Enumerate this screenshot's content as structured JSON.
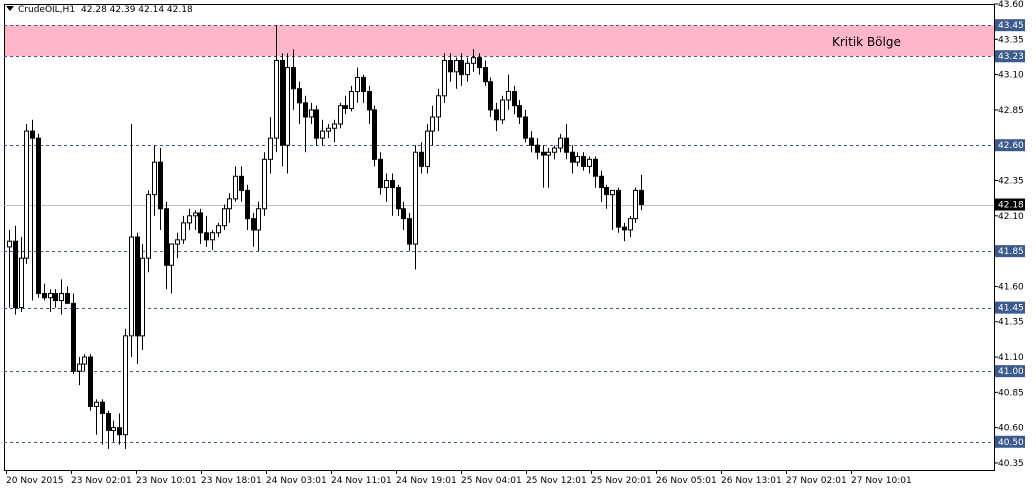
{
  "header": {
    "symbol": "CrudeOIL,H1",
    "ohlc": "42.28 42.39 42.14 42.18"
  },
  "zone": {
    "label": "Kritik Bölge",
    "from": 43.23,
    "to": 43.45,
    "color": "#ffb6c8"
  },
  "colors": {
    "bg": "#ffffff",
    "grid": "#000000",
    "level_line": "#3c5a8c",
    "current_line": "#c0c0c0",
    "bull": "#ffffff",
    "bear": "#000000"
  },
  "chart_data": {
    "type": "candlestick",
    "symbol": "CrudeOIL",
    "timeframe": "H1",
    "ylim": [
      40.3,
      43.6
    ],
    "y_ticks": [
      "43.60",
      "43.35",
      "43.10",
      "42.85",
      "42.35",
      "42.10",
      "41.60",
      "41.35",
      "41.10",
      "40.85",
      "40.60",
      "40.35"
    ],
    "level_lines": [
      "43.45",
      "43.23",
      "42.60",
      "41.85",
      "41.45",
      "41.00",
      "40.50"
    ],
    "current_price": "42.18",
    "x_ticks": [
      "20 Nov 2015",
      "23 Nov 02:01",
      "23 Nov 10:01",
      "23 Nov 18:01",
      "24 Nov 03:01",
      "24 Nov 11:01",
      "24 Nov 19:01",
      "25 Nov 04:01",
      "25 Nov 12:01",
      "25 Nov 20:01",
      "26 Nov 05:01",
      "26 Nov 13:01",
      "27 Nov 02:01",
      "27 Nov 10:01"
    ],
    "candles": [
      [
        41.88,
        42.0,
        41.45,
        41.92
      ],
      [
        41.92,
        42.03,
        41.4,
        41.45
      ],
      [
        41.45,
        41.95,
        41.42,
        41.8
      ],
      [
        41.8,
        42.75,
        41.76,
        42.7
      ],
      [
        42.7,
        42.78,
        41.5,
        42.65
      ],
      [
        42.65,
        42.68,
        41.52,
        41.55
      ],
      [
        41.55,
        41.62,
        41.5,
        41.52
      ],
      [
        41.52,
        41.58,
        41.42,
        41.55
      ],
      [
        41.55,
        41.58,
        41.45,
        41.5
      ],
      [
        41.5,
        41.65,
        41.4,
        41.55
      ],
      [
        41.55,
        41.6,
        41.48,
        41.48
      ],
      [
        41.48,
        41.55,
        40.98,
        41.0
      ],
      [
        41.0,
        41.1,
        40.9,
        41.05
      ],
      [
        41.05,
        41.12,
        41.0,
        41.1
      ],
      [
        41.1,
        41.12,
        40.72,
        40.75
      ],
      [
        40.75,
        40.8,
        40.55,
        40.78
      ],
      [
        40.78,
        40.8,
        40.48,
        40.7
      ],
      [
        40.7,
        40.72,
        40.45,
        40.58
      ],
      [
        40.58,
        40.65,
        40.5,
        40.6
      ],
      [
        40.6,
        40.7,
        40.48,
        40.55
      ],
      [
        40.55,
        41.3,
        40.45,
        41.25
      ],
      [
        41.25,
        42.75,
        41.1,
        41.95
      ],
      [
        41.95,
        41.98,
        41.05,
        41.25
      ],
      [
        41.25,
        41.9,
        41.15,
        41.8
      ],
      [
        41.8,
        42.28,
        41.7,
        42.25
      ],
      [
        42.25,
        42.6,
        42.1,
        42.48
      ],
      [
        42.48,
        42.58,
        42.0,
        42.15
      ],
      [
        42.15,
        42.2,
        41.58,
        41.75
      ],
      [
        41.75,
        41.9,
        41.55,
        41.9
      ],
      [
        41.9,
        41.98,
        41.8,
        41.93
      ],
      [
        41.93,
        42.1,
        41.9,
        42.05
      ],
      [
        42.05,
        42.15,
        42.0,
        42.1
      ],
      [
        42.1,
        42.14,
        42.0,
        42.12
      ],
      [
        42.12,
        42.15,
        41.9,
        41.98
      ],
      [
        41.98,
        42.1,
        41.88,
        41.93
      ],
      [
        41.93,
        42.0,
        41.86,
        41.98
      ],
      [
        41.98,
        42.05,
        41.95,
        42.03
      ],
      [
        42.03,
        42.18,
        42.0,
        42.15
      ],
      [
        42.15,
        42.26,
        42.05,
        42.22
      ],
      [
        42.22,
        42.45,
        42.2,
        42.38
      ],
      [
        42.38,
        42.45,
        42.2,
        42.28
      ],
      [
        42.28,
        42.32,
        42.0,
        42.08
      ],
      [
        42.08,
        42.12,
        41.88,
        42.0
      ],
      [
        42.0,
        42.2,
        41.85,
        42.15
      ],
      [
        42.15,
        42.55,
        42.1,
        42.5
      ],
      [
        42.5,
        42.8,
        42.4,
        42.65
      ],
      [
        42.65,
        43.45,
        42.55,
        43.2
      ],
      [
        43.2,
        43.25,
        42.45,
        42.6
      ],
      [
        42.6,
        43.25,
        42.4,
        43.15
      ],
      [
        43.15,
        43.28,
        42.85,
        43.0
      ],
      [
        43.0,
        43.05,
        42.75,
        42.9
      ],
      [
        42.9,
        42.95,
        42.55,
        42.8
      ],
      [
        42.8,
        42.9,
        42.75,
        42.85
      ],
      [
        42.85,
        42.88,
        42.6,
        42.65
      ],
      [
        42.65,
        42.78,
        42.6,
        42.7
      ],
      [
        42.7,
        42.75,
        42.65,
        42.72
      ],
      [
        42.72,
        42.78,
        42.62,
        42.75
      ],
      [
        42.75,
        42.9,
        42.72,
        42.88
      ],
      [
        42.88,
        42.95,
        42.82,
        42.86
      ],
      [
        42.86,
        43.02,
        42.84,
        42.98
      ],
      [
        42.98,
        43.15,
        42.9,
        43.08
      ],
      [
        43.08,
        43.1,
        42.9,
        42.98
      ],
      [
        42.98,
        43.02,
        42.75,
        42.85
      ],
      [
        42.85,
        42.88,
        42.45,
        42.5
      ],
      [
        42.5,
        42.55,
        42.25,
        42.3
      ],
      [
        42.3,
        42.4,
        42.2,
        42.35
      ],
      [
        42.35,
        42.4,
        42.1,
        42.3
      ],
      [
        42.3,
        42.32,
        42.1,
        42.15
      ],
      [
        42.15,
        42.2,
        42.0,
        42.08
      ],
      [
        42.08,
        42.12,
        41.85,
        41.9
      ],
      [
        41.9,
        42.6,
        41.72,
        42.55
      ],
      [
        42.55,
        42.62,
        42.4,
        42.45
      ],
      [
        42.45,
        42.75,
        42.4,
        42.7
      ],
      [
        42.7,
        42.88,
        42.6,
        42.8
      ],
      [
        42.8,
        43.0,
        42.7,
        42.95
      ],
      [
        42.95,
        43.25,
        42.9,
        43.2
      ],
      [
        43.2,
        43.25,
        43.05,
        43.12
      ],
      [
        43.12,
        43.22,
        43.0,
        43.2
      ],
      [
        43.2,
        43.25,
        43.02,
        43.1
      ],
      [
        43.1,
        43.22,
        43.05,
        43.18
      ],
      [
        43.18,
        43.28,
        43.12,
        43.22
      ],
      [
        43.22,
        43.25,
        43.1,
        43.15
      ],
      [
        43.15,
        43.2,
        43.02,
        43.05
      ],
      [
        43.05,
        43.08,
        42.8,
        42.85
      ],
      [
        42.85,
        42.9,
        42.7,
        42.78
      ],
      [
        42.78,
        42.95,
        42.75,
        42.92
      ],
      [
        42.92,
        43.1,
        42.85,
        42.98
      ],
      [
        42.98,
        43.02,
        42.82,
        42.88
      ],
      [
        42.88,
        42.92,
        42.75,
        42.8
      ],
      [
        42.8,
        42.85,
        42.62,
        42.65
      ],
      [
        42.65,
        42.7,
        42.55,
        42.6
      ],
      [
        42.6,
        42.65,
        42.5,
        42.55
      ],
      [
        42.55,
        42.6,
        42.3,
        42.53
      ],
      [
        42.53,
        42.58,
        42.3,
        42.55
      ],
      [
        42.55,
        42.6,
        42.5,
        42.58
      ],
      [
        42.58,
        42.68,
        42.55,
        42.65
      ],
      [
        42.65,
        42.75,
        42.5,
        42.55
      ],
      [
        42.55,
        42.6,
        42.4,
        42.48
      ],
      [
        42.48,
        42.55,
        42.45,
        42.52
      ],
      [
        42.52,
        42.55,
        42.42,
        42.45
      ],
      [
        42.45,
        42.52,
        42.4,
        42.5
      ],
      [
        42.5,
        42.52,
        42.3,
        42.38
      ],
      [
        42.38,
        42.42,
        42.2,
        42.3
      ],
      [
        42.3,
        42.32,
        42.15,
        42.25
      ],
      [
        42.25,
        42.28,
        42.0,
        42.28
      ],
      [
        42.28,
        42.3,
        41.98,
        42.02
      ],
      [
        42.02,
        42.05,
        41.92,
        42.0
      ],
      [
        42.0,
        42.1,
        41.95,
        42.08
      ],
      [
        42.08,
        42.3,
        42.05,
        42.28
      ],
      [
        42.28,
        42.39,
        42.14,
        42.18
      ]
    ]
  }
}
